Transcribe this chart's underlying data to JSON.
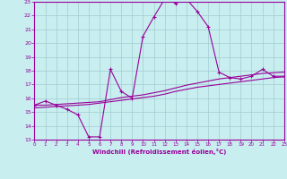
{
  "xlabel": "Windchill (Refroidissement éolien,°C)",
  "bg_color": "#c8eef0",
  "grid_color": "#a0ccd0",
  "line_color": "#990099",
  "xmin": 0,
  "xmax": 23,
  "ymin": 13,
  "ymax": 23,
  "line1_x": [
    0,
    1,
    2,
    3,
    4,
    5,
    6,
    7,
    8,
    9,
    10,
    11,
    12,
    13,
    14,
    15,
    16,
    17,
    18,
    19,
    20,
    21,
    22,
    23
  ],
  "line1_y": [
    15.5,
    15.8,
    15.5,
    15.2,
    14.8,
    13.2,
    13.2,
    18.1,
    16.5,
    16.0,
    20.5,
    21.9,
    23.2,
    22.9,
    23.2,
    22.3,
    21.2,
    17.9,
    17.5,
    17.4,
    17.6,
    18.1,
    17.6,
    17.6
  ],
  "line2_x": [
    0,
    1,
    2,
    3,
    4,
    5,
    6,
    7,
    8,
    9,
    10,
    11,
    12,
    13,
    14,
    15,
    16,
    17,
    18,
    19,
    20,
    21,
    22,
    23
  ],
  "line2_y": [
    15.5,
    15.5,
    15.55,
    15.6,
    15.65,
    15.7,
    15.75,
    15.9,
    16.05,
    16.15,
    16.25,
    16.4,
    16.55,
    16.75,
    16.95,
    17.1,
    17.25,
    17.4,
    17.5,
    17.6,
    17.7,
    17.8,
    17.85,
    17.9
  ],
  "line3_x": [
    0,
    1,
    2,
    3,
    4,
    5,
    6,
    7,
    8,
    9,
    10,
    11,
    12,
    13,
    14,
    15,
    16,
    17,
    18,
    19,
    20,
    21,
    22,
    23
  ],
  "line3_y": [
    15.3,
    15.35,
    15.4,
    15.45,
    15.5,
    15.55,
    15.65,
    15.75,
    15.85,
    15.95,
    16.05,
    16.15,
    16.3,
    16.5,
    16.65,
    16.8,
    16.9,
    17.0,
    17.1,
    17.2,
    17.3,
    17.4,
    17.5,
    17.55
  ]
}
